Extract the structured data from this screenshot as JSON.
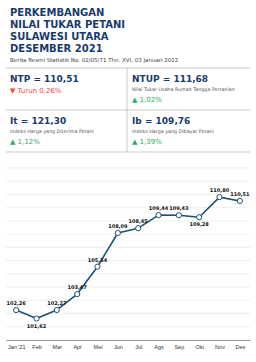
{
  "chart_data": {
    "type": "line",
    "title": [
      "PERKEMBANGAN",
      "NILAI TUKAR PETANI",
      "SULAWESI UTARA",
      "DESEMBER 2021"
    ],
    "subtitle": "Berita Resmi Statistik No. 02/05/71 Thn. XVI, 03 Januari 2022",
    "annotations": [
      [
        {
          "text": "NTP = 110,51"
        },
        {
          "text": "▼ Turun 0,26%",
          "color": "#e74c3c"
        }
      ],
      [
        {
          "text": "NTUP = 111,68"
        },
        {
          "text": "Nilai Tukar Usaha Rumah Tangga Pertanian"
        },
        {
          "text": "▲ 1,02%",
          "color": "#27ae60"
        }
      ],
      [
        {
          "text": "It = 121,30"
        },
        {
          "text": "Indeks Harga yang Diterima Petani"
        },
        {
          "text": "▲ 1,12%",
          "color": "#27ae60"
        }
      ],
      [
        {
          "text": "Ib = 109,76"
        },
        {
          "text": "Indeks Harga yang Dibayar Petani"
        },
        {
          "text": "▲ 1,39%",
          "color": "#27ae60"
        }
      ]
    ],
    "categories": [
      "Jan '21",
      "Feb",
      "Mar",
      "Apr",
      "Mei",
      "Jun",
      "Jul",
      "Ags",
      "Sep",
      "Okt",
      "Nov",
      "Des"
    ],
    "values": [
      102.26,
      101.62,
      102.27,
      103.47,
      105.54,
      108.09,
      108.45,
      109.44,
      109.43,
      109.28,
      110.8,
      110.51
    ],
    "value_labels": [
      "102,26",
      "101,62",
      "102,27",
      "103,47",
      "105,54",
      "108,09",
      "108,45",
      "109,44",
      "109,43",
      "109,28",
      "110,80",
      "110,51"
    ],
    "color": "#1a5276",
    "marker": "circle",
    "data_labels": true,
    "ylim": [
      100,
      113
    ],
    "yticks": [
      100,
      101,
      102,
      103,
      104,
      105,
      106,
      107,
      108,
      109,
      110,
      111,
      112,
      113
    ],
    "grid": true,
    "tick_labels": "x"
  }
}
